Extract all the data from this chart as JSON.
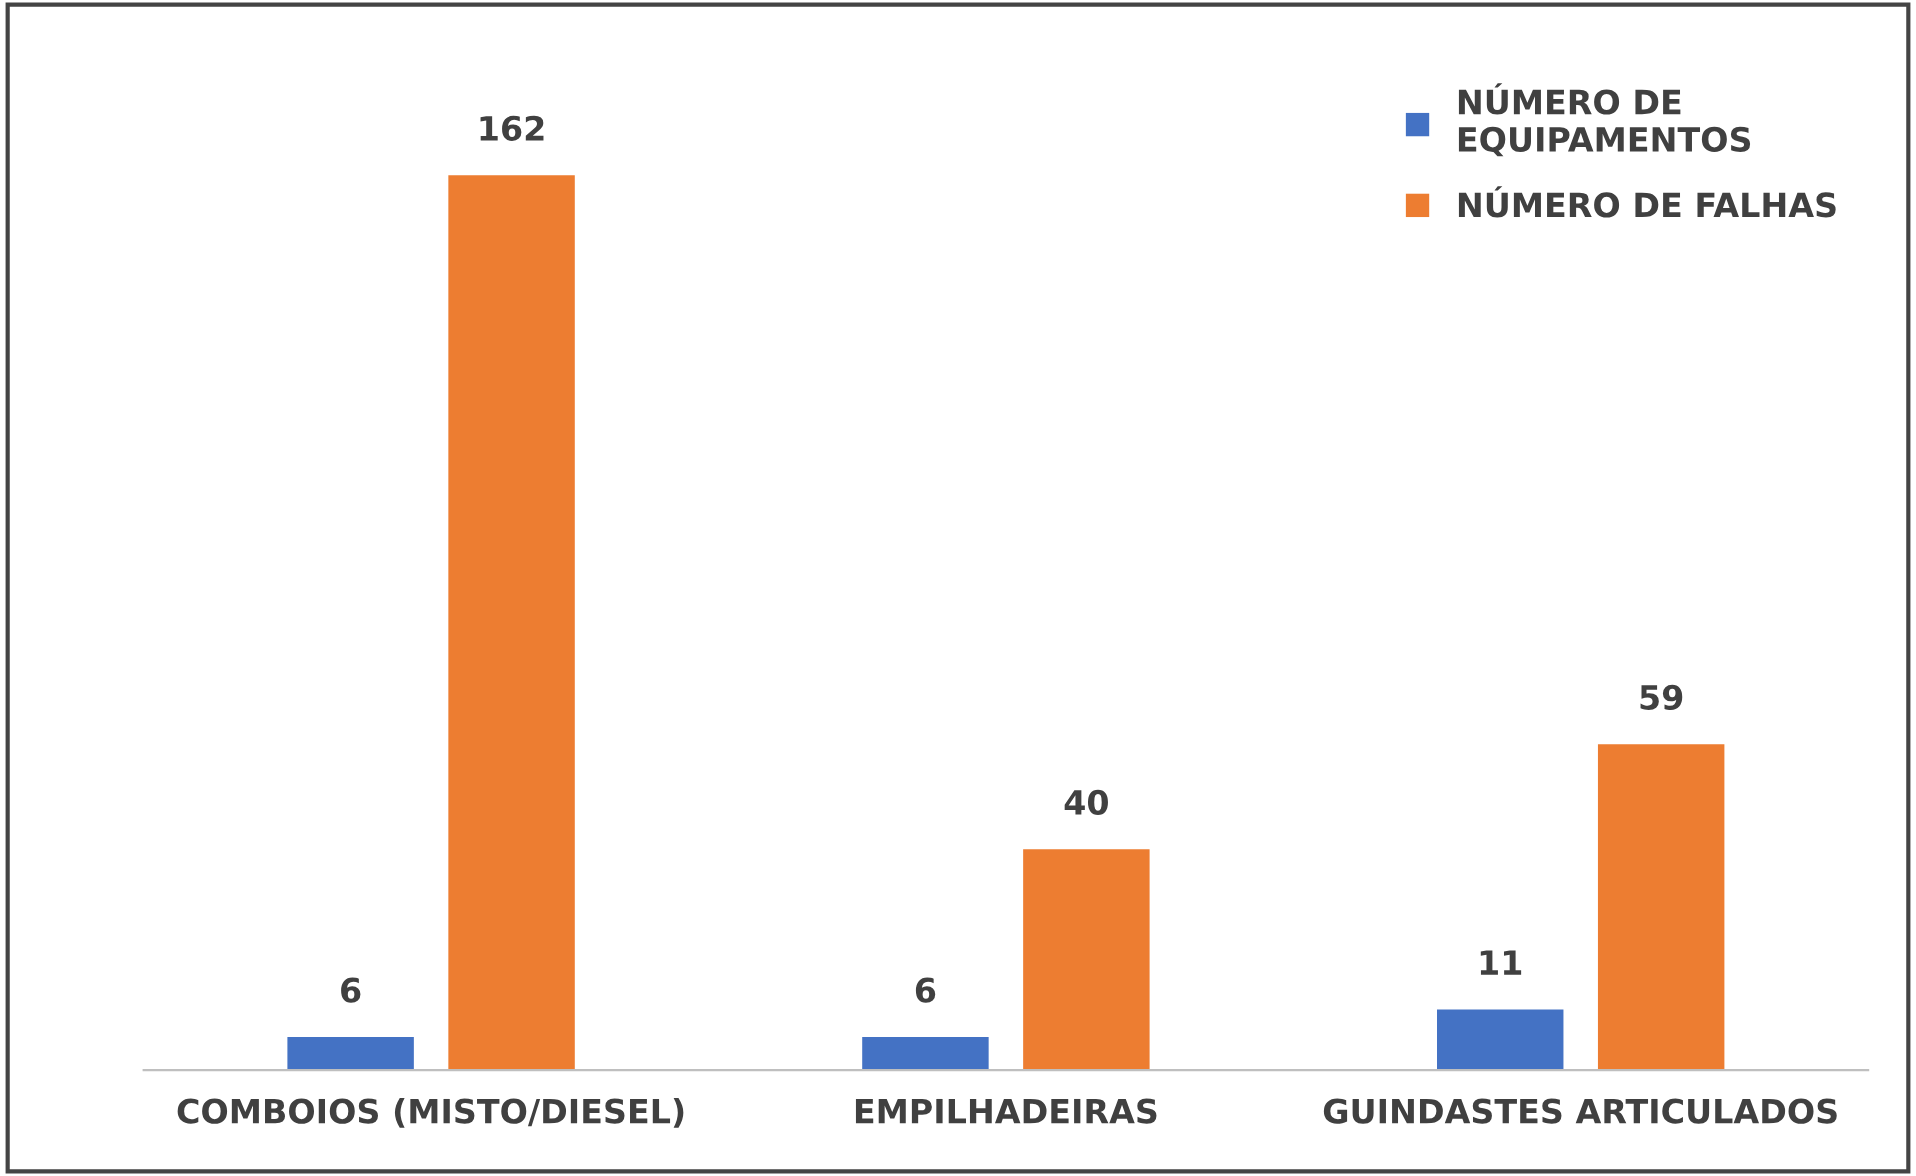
{
  "chart_data": {
    "type": "bar",
    "categories": [
      "COMBOIOS (MISTO/DIESEL)",
      "EMPILHADEIRAS",
      "GUINDASTES ARTICULADOS"
    ],
    "series": [
      {
        "name": "NÚMERO DE\nEQUIPAMENTOS",
        "color": "#4472c4",
        "values": [
          6,
          6,
          11
        ]
      },
      {
        "name": "NÚMERO DE FALHAS",
        "color": "#ed7d31",
        "values": [
          162,
          40,
          59
        ]
      }
    ],
    "data_labels": true,
    "legend": "top right"
  }
}
